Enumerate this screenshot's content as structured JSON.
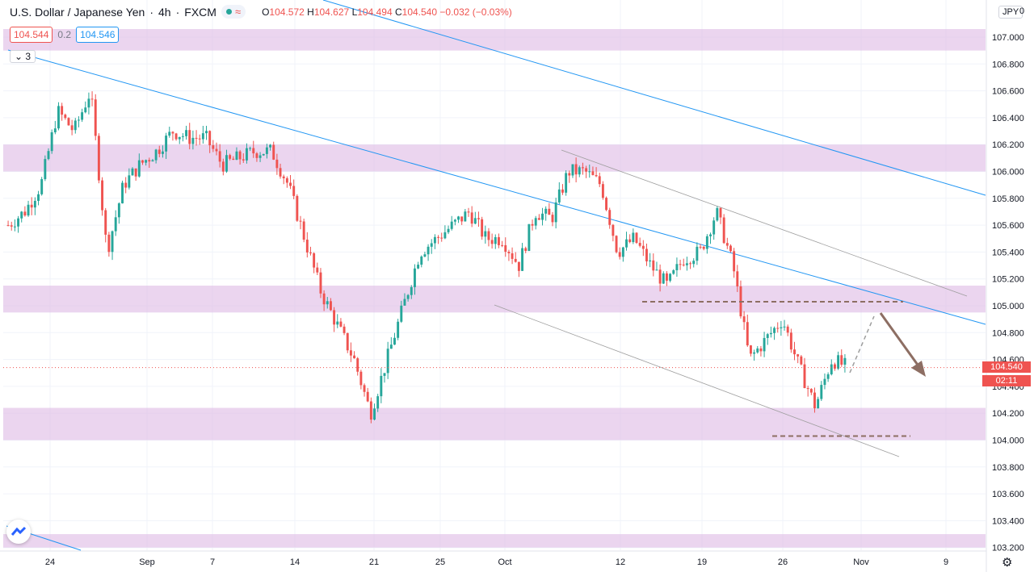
{
  "header": {
    "title": "U.S. Dollar / Japanese Yen",
    "interval": "4h",
    "source": "FXCM",
    "status_icon": "wave-icon",
    "ohlc": {
      "o_key": "O",
      "o": "104.572",
      "h_key": "H",
      "h": "104.627",
      "l_key": "L",
      "l": "104.494",
      "c_key": "C",
      "c": "104.540",
      "change": "−0.032 (−0.03%)"
    }
  },
  "prices": {
    "bid": "104.544",
    "spread": "0.2",
    "ask": "104.546"
  },
  "indicators_count": "3",
  "currency": "JPY",
  "axis_top_partial": "0",
  "price_label": {
    "value": "104.540",
    "countdown": "02:11"
  },
  "colors": {
    "up": "#26a69a",
    "down": "#ef5350",
    "zone": "#e1bee7",
    "trend": "#2196f3",
    "channel": "#9e9e9e",
    "level": "#8d6e63",
    "arrow": "#8d6e63"
  },
  "chart_data": {
    "type": "line",
    "title": "U.S. Dollar / Japanese Yen, 4h, FXCM",
    "xlabel": "",
    "ylabel": "",
    "ylim": [
      103.2,
      107.1
    ],
    "grid": true,
    "y_ticks": [
      "107.000",
      "106.800",
      "106.600",
      "106.400",
      "106.200",
      "106.000",
      "105.800",
      "105.600",
      "105.400",
      "105.200",
      "105.000",
      "104.800",
      "104.600",
      "104.400",
      "104.200",
      "104.000",
      "103.800",
      "103.600",
      "103.400",
      "103.200"
    ],
    "x_ticks": [
      "24",
      "Sep",
      "7",
      "14",
      "21",
      "25",
      "Oct",
      "12",
      "19",
      "26",
      "Nov",
      "9"
    ],
    "series": [
      {
        "values_description": "approximate 4h closing path read from candles",
        "points": [
          [
            "Aug 21",
            105.6
          ],
          [
            "Aug 24",
            105.7
          ],
          [
            "Aug 25",
            105.9
          ],
          [
            "Aug 26",
            106.45
          ],
          [
            "Aug 27",
            106.3
          ],
          [
            "Aug 28",
            106.6
          ],
          [
            "Aug 28 pm",
            105.4
          ],
          [
            "Aug 31",
            105.9
          ],
          [
            "Sep 1",
            106.05
          ],
          [
            "Sep 2",
            106.15
          ],
          [
            "Sep 3",
            106.3
          ],
          [
            "Sep 4",
            106.25
          ],
          [
            "Sep 7",
            106.25
          ],
          [
            "Sep 8",
            106.05
          ],
          [
            "Sep 9",
            106.1
          ],
          [
            "Sep 10",
            106.15
          ],
          [
            "Sep 11",
            106.15
          ],
          [
            "Sep 14",
            105.9
          ],
          [
            "Sep 15",
            105.5
          ],
          [
            "Sep 16",
            105.1
          ],
          [
            "Sep 17",
            104.85
          ],
          [
            "Sep 18",
            104.6
          ],
          [
            "Sep 21",
            104.2
          ],
          [
            "Sep 22",
            104.6
          ],
          [
            "Sep 23",
            105.0
          ],
          [
            "Sep 24",
            105.4
          ],
          [
            "Sep 25",
            105.5
          ],
          [
            "Sep 28",
            105.6
          ],
          [
            "Sep 29",
            105.7
          ],
          [
            "Sep 30",
            105.5
          ],
          [
            "Oct 1",
            105.5
          ],
          [
            "Oct 2",
            105.3
          ],
          [
            "Oct 5",
            105.7
          ],
          [
            "Oct 6",
            105.65
          ],
          [
            "Oct 7",
            106.0
          ],
          [
            "Oct 8",
            106.0
          ],
          [
            "Oct 9",
            105.9
          ],
          [
            "Oct 12",
            105.4
          ],
          [
            "Oct 13",
            105.5
          ],
          [
            "Oct 14",
            105.3
          ],
          [
            "Oct 15",
            105.15
          ],
          [
            "Oct 16",
            105.35
          ],
          [
            "Oct 19",
            105.4
          ],
          [
            "Oct 20",
            105.7
          ],
          [
            "Oct 21",
            105.3
          ],
          [
            "Oct 22",
            104.6
          ],
          [
            "Oct 23",
            104.75
          ],
          [
            "Oct 26",
            104.9
          ],
          [
            "Oct 27",
            104.55
          ],
          [
            "Oct 28",
            104.25
          ],
          [
            "Oct 29",
            104.6
          ],
          [
            "Oct 30",
            104.54
          ]
        ]
      }
    ],
    "zones": [
      [
        106.9,
        107.06
      ],
      [
        106.0,
        106.2
      ],
      [
        104.95,
        105.15
      ],
      [
        104.0,
        104.24
      ],
      [
        103.2,
        103.3
      ]
    ],
    "levels": [
      105.03,
      104.03
    ],
    "last_price": 104.54
  }
}
